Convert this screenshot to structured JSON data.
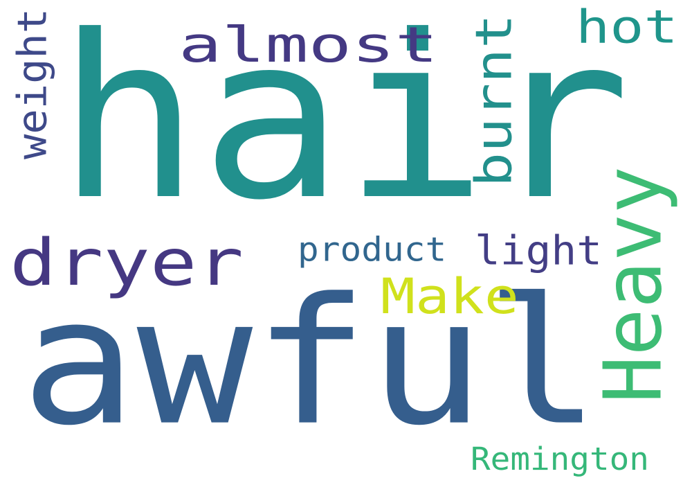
{
  "words": [
    {
      "text": "hair",
      "orientation": "horizontal",
      "color": "#21908d"
    },
    {
      "text": "awful",
      "orientation": "horizontal",
      "color": "#355e8d"
    },
    {
      "text": "dryer",
      "orientation": "horizontal",
      "color": "#453882"
    },
    {
      "text": "Heavy",
      "orientation": "vertical",
      "color": "#3dbc74"
    },
    {
      "text": "almost",
      "orientation": "horizontal",
      "color": "#443983"
    },
    {
      "text": "burnt",
      "orientation": "vertical",
      "color": "#22908c"
    },
    {
      "text": "hot",
      "orientation": "horizontal",
      "color": "#1f958b"
    },
    {
      "text": "Make",
      "orientation": "horizontal",
      "color": "#d0e11c"
    },
    {
      "text": "light",
      "orientation": "horizontal",
      "color": "#433e85"
    },
    {
      "text": "weight",
      "orientation": "vertical",
      "color": "#3e4989"
    },
    {
      "text": "product",
      "orientation": "horizontal",
      "color": "#31668e"
    },
    {
      "text": "Remington",
      "orientation": "horizontal",
      "color": "#35b779"
    }
  ]
}
